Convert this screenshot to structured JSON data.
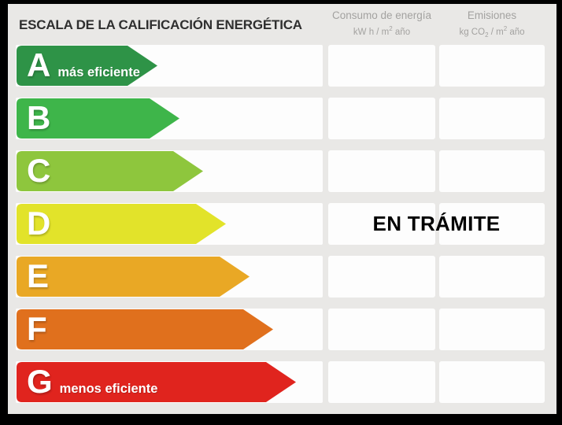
{
  "title": "ESCALA DE LA CALIFICACIÓN ENERGÉTICA",
  "columns": {
    "consumption": {
      "label": "Consumo de energía",
      "unit_pre": "kW h / m",
      "unit_sup": "2",
      "unit_post": " año"
    },
    "emissions": {
      "label": "Emisiones",
      "unit_pre": "kg CO",
      "unit_sub": "2",
      "unit_mid": " / m",
      "unit_sup": "2",
      "unit_post": " año"
    }
  },
  "status": {
    "text": "EN TRÁMITE",
    "row": "D"
  },
  "ratings": [
    {
      "letter": "A",
      "label": "más eficiente",
      "color": "#2e9347",
      "arrow_width": 179,
      "consumption_value": "",
      "emissions_value": ""
    },
    {
      "letter": "B",
      "label": "",
      "color": "#3eb54a",
      "arrow_width": 207,
      "consumption_value": "",
      "emissions_value": ""
    },
    {
      "letter": "C",
      "label": "",
      "color": "#8ec63d",
      "arrow_width": 237,
      "consumption_value": "",
      "emissions_value": ""
    },
    {
      "letter": "D",
      "label": "",
      "color": "#e2e32a",
      "arrow_width": 266,
      "consumption_value": "",
      "emissions_value": ""
    },
    {
      "letter": "E",
      "label": "",
      "color": "#e9a825",
      "arrow_width": 296,
      "consumption_value": "",
      "emissions_value": ""
    },
    {
      "letter": "F",
      "label": "",
      "color": "#e0701d",
      "arrow_width": 326,
      "consumption_value": "",
      "emissions_value": ""
    },
    {
      "letter": "G",
      "label": "menos eficiente",
      "color": "#e0241e",
      "arrow_width": 355,
      "consumption_value": "",
      "emissions_value": ""
    }
  ],
  "colors": {
    "frame": "#000000",
    "background": "#e9e8e6",
    "cell": "#fdfdfd",
    "header_text": "#a3a2a0",
    "title_text": "#2f2f2f",
    "status_text": "#000000"
  }
}
